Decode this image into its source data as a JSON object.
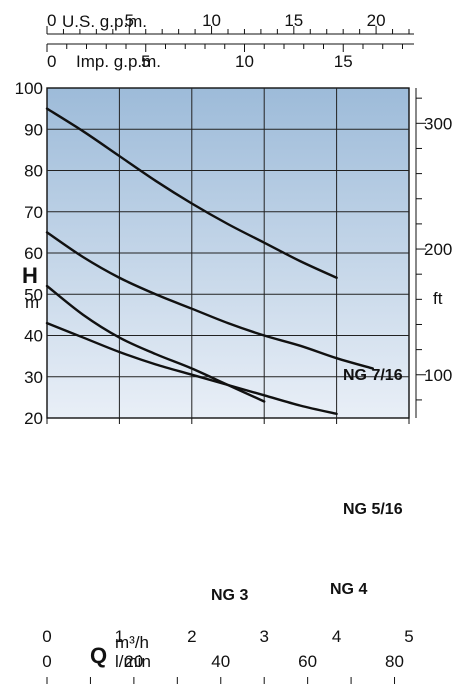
{
  "chart_data": {
    "type": "line",
    "x": [
      0,
      1,
      2,
      3,
      4,
      4.5
    ],
    "series": [
      {
        "name": "NG 7/16",
        "x": [
          0,
          0.5,
          1,
          1.5,
          2,
          2.5,
          3,
          3.5,
          4
        ],
        "values": [
          95,
          89.5,
          83.5,
          77.5,
          72,
          67,
          62.5,
          58,
          54
        ]
      },
      {
        "name": "NG 5/16",
        "x": [
          0,
          0.5,
          1,
          1.5,
          2,
          2.5,
          3,
          3.5,
          4,
          4.5
        ],
        "values": [
          65,
          59,
          54,
          50,
          46.5,
          43,
          40,
          37.5,
          34.5,
          32
        ]
      },
      {
        "name": "NG 4",
        "x": [
          0,
          0.5,
          1,
          1.5,
          2,
          2.5,
          3,
          3.5,
          4
        ],
        "values": [
          43,
          39.5,
          36,
          33,
          30.5,
          28,
          25.5,
          23,
          21
        ]
      },
      {
        "name": "NG 3",
        "x": [
          0,
          0.5,
          1,
          1.5,
          2,
          2.5,
          3
        ],
        "values": [
          52,
          45,
          39.5,
          35.5,
          32,
          28,
          24
        ]
      }
    ],
    "axes": {
      "bottom_primary": {
        "unit_top": "m³/h",
        "ticks": [
          "0",
          "1",
          "2",
          "3",
          "4",
          "5"
        ],
        "range": [
          0,
          5
        ]
      },
      "bottom_secondary": {
        "unit": "l/min",
        "ticks": [
          "0",
          "20",
          "40",
          "60",
          "80"
        ],
        "range": [
          0,
          83.333
        ]
      },
      "top_primary": {
        "unit": "U.S. g.p.m.",
        "ticks": [
          "0",
          "5",
          "10",
          "15",
          "20"
        ],
        "range": [
          0,
          22.0
        ]
      },
      "top_secondary": {
        "unit": "Imp. g.p.m.",
        "ticks": [
          "0",
          "5",
          "10",
          "15"
        ],
        "range": [
          0,
          18.33
        ]
      },
      "left": {
        "symbol": "H",
        "unit": "m",
        "ticks": [
          "20",
          "30",
          "40",
          "50",
          "60",
          "70",
          "80",
          "90",
          "100"
        ],
        "range": [
          20,
          100
        ]
      },
      "right": {
        "unit": "ft",
        "ticks": [
          "100",
          "200",
          "300"
        ],
        "range": [
          65.6,
          328.1
        ]
      },
      "bottom_symbol": "Q"
    },
    "grid": true
  }
}
